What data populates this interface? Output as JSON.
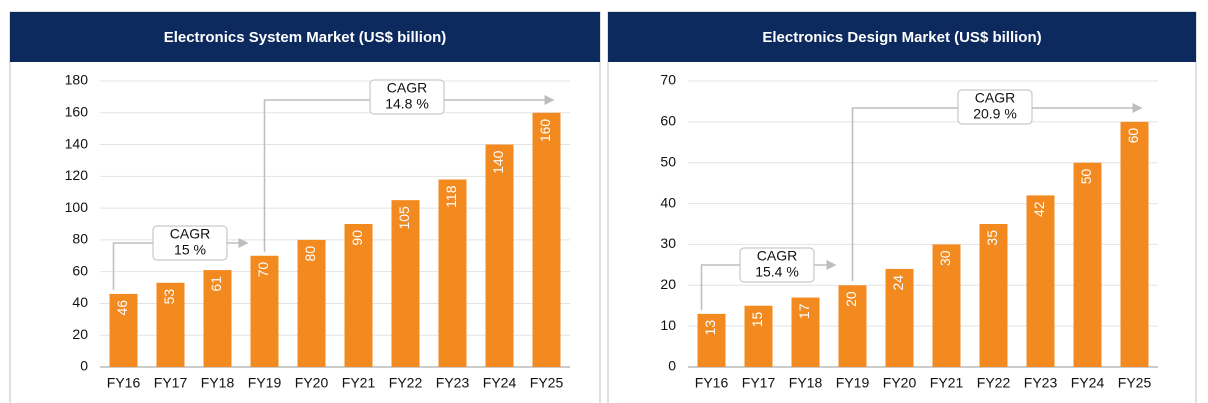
{
  "chart_data": [
    {
      "type": "bar",
      "title": "Electronics System Market (US$ billion)",
      "categories": [
        "FY16",
        "FY17",
        "FY18",
        "FY19",
        "FY20",
        "FY21",
        "FY22",
        "FY23",
        "FY24",
        "FY25"
      ],
      "values": [
        46,
        53,
        61,
        70,
        80,
        90,
        105,
        118,
        140,
        160
      ],
      "color": "#f28a1f",
      "ylim": [
        0,
        180
      ],
      "yticks": [
        0,
        20,
        40,
        60,
        80,
        100,
        120,
        140,
        160,
        180
      ],
      "grid": true,
      "annotations": [
        {
          "lines": [
            "CAGR",
            "15 %"
          ]
        },
        {
          "lines": [
            "CAGR",
            "14.8 %"
          ]
        }
      ]
    },
    {
      "type": "bar",
      "title": "Electronics Design Market (US$ billion)",
      "categories": [
        "FY16",
        "FY17",
        "FY18",
        "FY19",
        "FY20",
        "FY21",
        "FY22",
        "FY23",
        "FY24",
        "FY25"
      ],
      "values": [
        13,
        15,
        17,
        20,
        24,
        30,
        35,
        42,
        50,
        60
      ],
      "color": "#f28a1f",
      "ylim": [
        0,
        70
      ],
      "yticks": [
        0,
        10,
        20,
        30,
        40,
        50,
        60,
        70
      ],
      "grid": true,
      "annotations": [
        {
          "lines": [
            "CAGR",
            "15.4 %"
          ]
        },
        {
          "lines": [
            "CAGR",
            "20.9 %"
          ]
        }
      ]
    }
  ]
}
